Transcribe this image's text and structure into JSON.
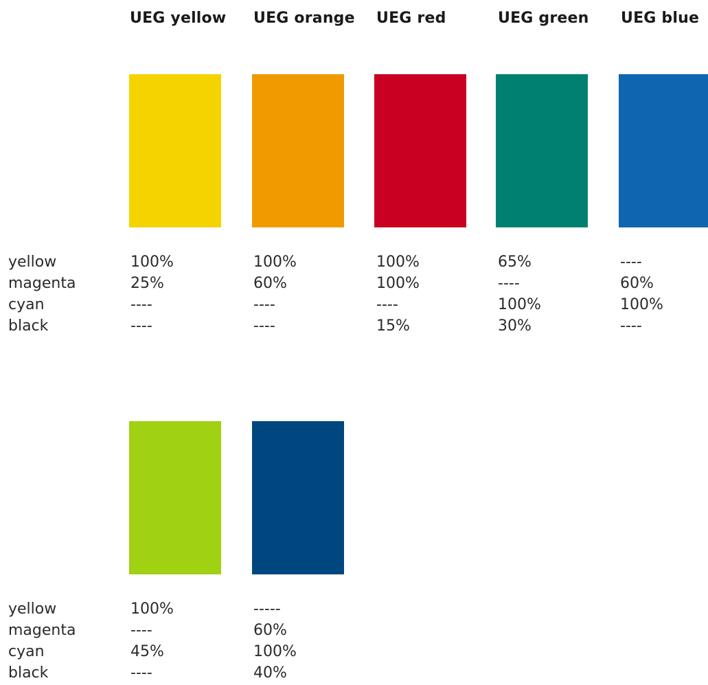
{
  "headers": [
    "UEG yellow",
    "UEG orange",
    "UEG red",
    "UEG green",
    "UEG blue"
  ],
  "row_labels": [
    "yellow",
    "magenta",
    "cyan",
    "black"
  ],
  "group1": {
    "swatches": [
      {
        "name": "UEG yellow",
        "color": "#f5d300",
        "values": [
          "100%",
          "25%",
          "----",
          "----"
        ]
      },
      {
        "name": "UEG orange",
        "color": "#f09a00",
        "values": [
          "100%",
          "60%",
          "----",
          "----"
        ]
      },
      {
        "name": "UEG red",
        "color": "#c90021",
        "values": [
          "100%",
          "100%",
          "----",
          "15%"
        ]
      },
      {
        "name": "UEG green",
        "color": "#008170",
        "values": [
          "65%",
          "----",
          "100%",
          "30%"
        ]
      },
      {
        "name": "UEG blue",
        "color": "#0f65b0",
        "values": [
          "----",
          "60%",
          "100%",
          "----"
        ]
      }
    ]
  },
  "group2": {
    "swatches": [
      {
        "color": "#a0d112",
        "values": [
          "100%",
          "----",
          "45%",
          "----"
        ]
      },
      {
        "color": "#00477f",
        "values": [
          "-----",
          "60%",
          "100%",
          "40%"
        ]
      }
    ]
  }
}
